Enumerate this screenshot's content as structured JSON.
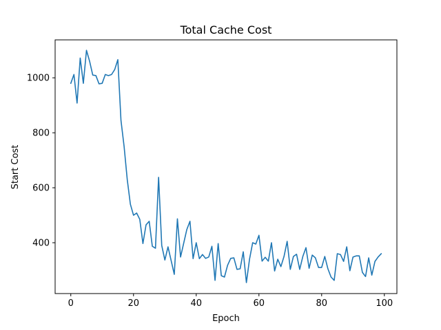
{
  "chart_data": {
    "type": "line",
    "title": "Total Cache Cost",
    "xlabel": "Epoch",
    "ylabel": "Start Cost",
    "xlim": [
      -5,
      104
    ],
    "ylim": [
      215,
      1138
    ],
    "xticks": [
      0,
      20,
      40,
      60,
      80,
      100
    ],
    "yticks": [
      400,
      600,
      800,
      1000
    ],
    "xtick_labels": [
      "0",
      "20",
      "40",
      "60",
      "80",
      "100"
    ],
    "ytick_labels": [
      "400",
      "600",
      "800",
      "1000"
    ],
    "grid": false,
    "series": [
      {
        "color": "#1f77b4",
        "x": [
          0,
          1,
          2,
          3,
          4,
          5,
          6,
          7,
          8,
          9,
          10,
          11,
          12,
          13,
          14,
          15,
          16,
          17,
          18,
          19,
          20,
          21,
          22,
          23,
          24,
          25,
          26,
          27,
          28,
          29,
          30,
          31,
          32,
          33,
          34,
          35,
          36,
          37,
          38,
          39,
          40,
          41,
          42,
          43,
          44,
          45,
          46,
          47,
          48,
          49,
          50,
          51,
          52,
          53,
          54,
          55,
          56,
          57,
          58,
          59,
          60,
          61,
          62,
          63,
          64,
          65,
          66,
          67,
          68,
          69,
          70,
          71,
          72,
          73,
          74,
          75,
          76,
          77,
          78,
          79,
          80,
          81,
          82,
          83,
          84,
          85,
          86,
          87,
          88,
          89,
          90,
          91,
          92,
          93,
          94,
          95,
          96,
          97,
          98,
          99
        ],
        "y": [
          980,
          1012,
          908,
          1072,
          980,
          1100,
          1060,
          1010,
          1008,
          978,
          980,
          1012,
          1008,
          1012,
          1030,
          1066,
          845,
          750,
          630,
          540,
          500,
          508,
          485,
          397,
          465,
          478,
          387,
          380,
          638,
          390,
          337,
          385,
          335,
          285,
          487,
          348,
          398,
          448,
          478,
          342,
          400,
          342,
          357,
          343,
          348,
          387,
          263,
          397,
          280,
          275,
          318,
          343,
          345,
          303,
          305,
          367,
          255,
          340,
          400,
          395,
          427,
          333,
          347,
          333,
          400,
          297,
          340,
          313,
          350,
          405,
          303,
          350,
          358,
          303,
          350,
          382,
          307,
          355,
          345,
          310,
          310,
          350,
          305,
          275,
          263,
          360,
          357,
          332,
          385,
          298,
          348,
          352,
          352,
          292,
          277,
          345,
          282,
          332,
          348,
          360
        ]
      }
    ]
  }
}
